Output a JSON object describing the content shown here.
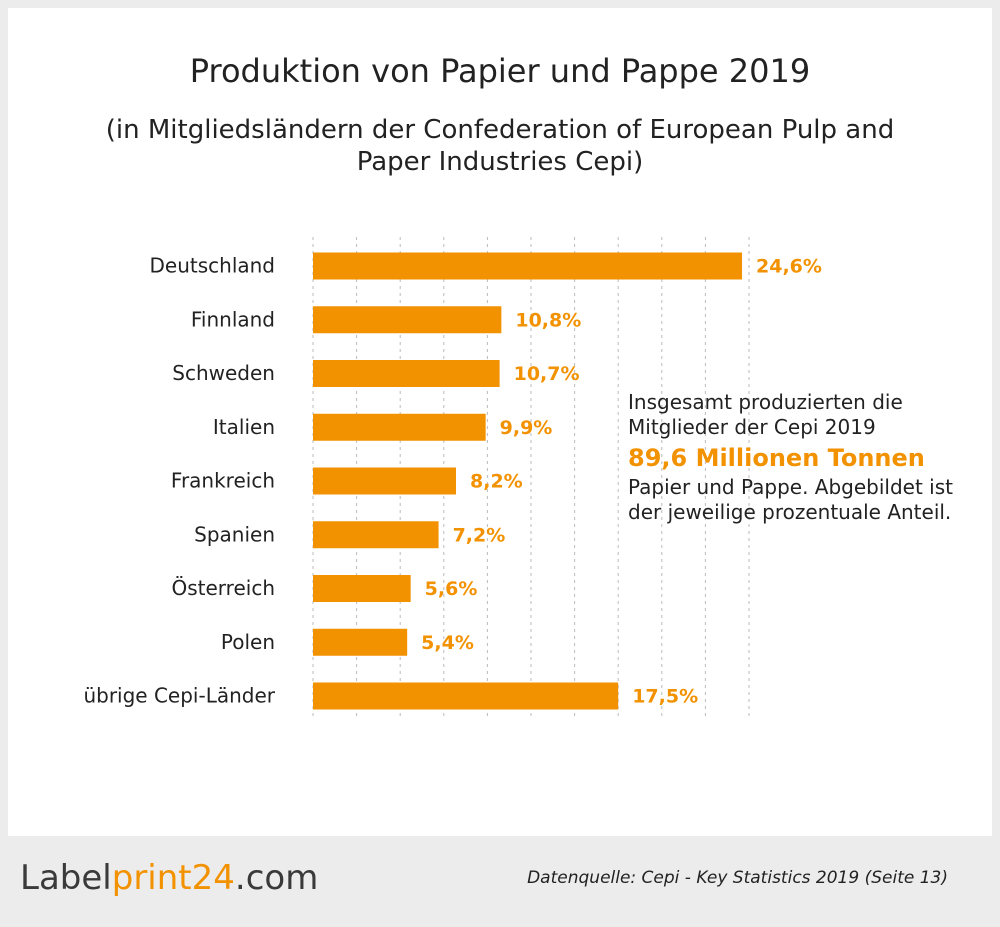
{
  "chart_data": {
    "type": "hbar",
    "title": "Produktion von Papier und Pappe 2019",
    "subtitle": "(in Mitgliedsländern der Confederation of European Pulp and Paper Industries Cepi)",
    "categories": [
      "Deutschland",
      "Finnland",
      "Schweden",
      "Italien",
      "Frankreich",
      "Spanien",
      "Österreich",
      "Polen",
      "übrige Cepi-Länder"
    ],
    "values": [
      24.6,
      10.8,
      10.7,
      9.9,
      8.2,
      7.2,
      5.6,
      5.4,
      17.5
    ],
    "value_labels": [
      "24,6%",
      "10,8%",
      "10,7%",
      "9,9%",
      "8,2%",
      "7,2%",
      "5,6%",
      "5,4%",
      "17,5%"
    ],
    "color": "#f39200",
    "xlim": [
      0,
      25
    ],
    "xticks": [
      0,
      2.5,
      5,
      7.5,
      10,
      12.5,
      15,
      17.5,
      20,
      22.5,
      25
    ],
    "grid": true,
    "annotation": {
      "intro": "Insgesamt produzierten die Mitglieder der Cepi 2019",
      "highlight": "89,6 Millionen Tonnen",
      "outro": "Papier und Pappe. Abgebildet ist der jeweilige prozentuale Anteil."
    }
  },
  "footer": {
    "logo": [
      "Label",
      "print24",
      ".com"
    ],
    "source": "Datenquelle: Cepi - Key Statistics 2019 (Seite 13)"
  }
}
